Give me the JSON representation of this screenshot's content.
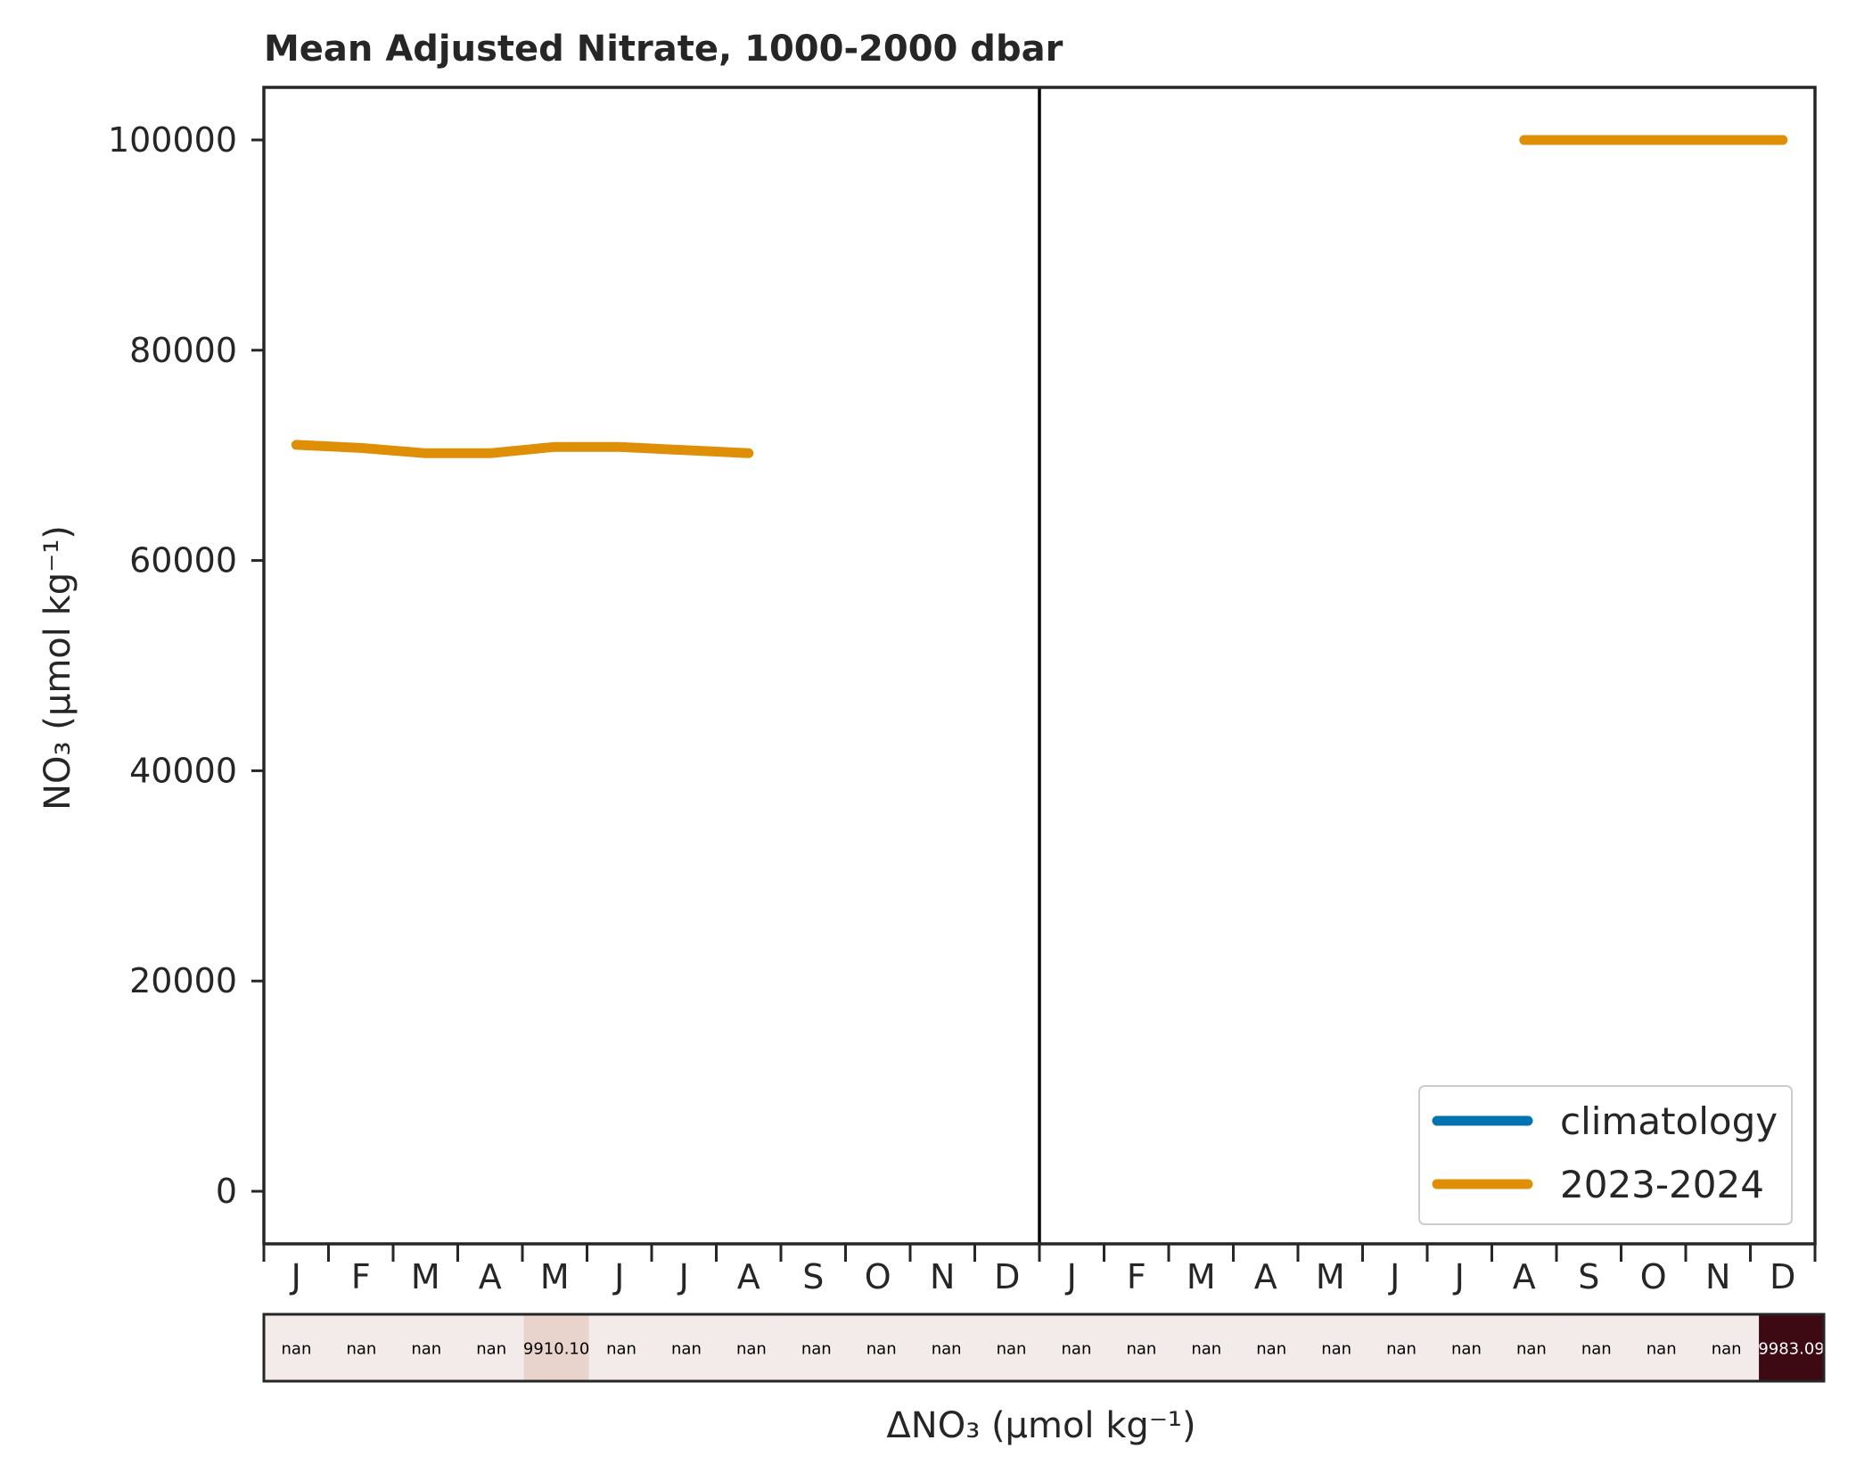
{
  "chart_data": {
    "type": "line",
    "title": "Mean Adjusted Nitrate, 1000-2000 dbar",
    "ylabel": "NO₃ (µmol kg⁻¹)",
    "ylim": [
      -5000,
      105000
    ],
    "yticks": [
      0,
      20000,
      40000,
      60000,
      80000,
      100000
    ],
    "yticklabels": [
      "0",
      "20000",
      "40000",
      "60000",
      "80000",
      "100000"
    ],
    "xlim": [
      0,
      24
    ],
    "month_labels": [
      "J",
      "F",
      "M",
      "A",
      "M",
      "J",
      "J",
      "A",
      "S",
      "O",
      "N",
      "D",
      "J",
      "F",
      "M",
      "A",
      "M",
      "J",
      "J",
      "A",
      "S",
      "O",
      "N",
      "D"
    ],
    "year_divider_x": 12,
    "legend": {
      "position": "lower right",
      "entries": [
        "climatology",
        "2023-2024"
      ]
    },
    "series": [
      {
        "name": "climatology",
        "color": "#0173b2",
        "segments": []
      },
      {
        "name": "2023-2024",
        "color": "#de8f05",
        "segments": [
          {
            "x": [
              0.5,
              1.5,
              2.5,
              3.5,
              4.5,
              5.5,
              6.5,
              7.5
            ],
            "y": [
              71000,
              70700,
              70200,
              70200,
              70800,
              70800,
              70500,
              70200
            ]
          },
          {
            "x": [
              19.5,
              20.5,
              21.5,
              22.5,
              23.5
            ],
            "y": [
              100000,
              100000,
              100000,
              100000,
              100000
            ]
          }
        ]
      }
    ],
    "anomaly_strip": {
      "xlabel": "ΔNO₃ (µmol kg⁻¹)",
      "labels": [
        "nan",
        "nan",
        "nan",
        "nan",
        "9910.10",
        "nan",
        "nan",
        "nan",
        "nan",
        "nan",
        "nan",
        "nan",
        "nan",
        "nan",
        "nan",
        "nan",
        "nan",
        "nan",
        "nan",
        "nan",
        "nan",
        "nan",
        "nan",
        "9983.09"
      ],
      "colors": [
        "#f2ebea",
        "#f2ebea",
        "#f2ebea",
        "#f2ebea",
        "#e8d4cc",
        "#f2ebea",
        "#f2ebea",
        "#f2ebea",
        "#f2ebea",
        "#f2ebea",
        "#f2ebea",
        "#f2ebea",
        "#f2ebea",
        "#f2ebea",
        "#f2ebea",
        "#f2ebea",
        "#f2ebea",
        "#f2ebea",
        "#f2ebea",
        "#f2ebea",
        "#f2ebea",
        "#f2ebea",
        "#f2ebea",
        "#3d0a14"
      ],
      "text_colors": [
        "#000000",
        "#000000",
        "#000000",
        "#000000",
        "#000000",
        "#000000",
        "#000000",
        "#000000",
        "#000000",
        "#000000",
        "#000000",
        "#000000",
        "#000000",
        "#000000",
        "#000000",
        "#000000",
        "#000000",
        "#000000",
        "#000000",
        "#000000",
        "#000000",
        "#000000",
        "#000000",
        "#ffffff"
      ]
    }
  }
}
